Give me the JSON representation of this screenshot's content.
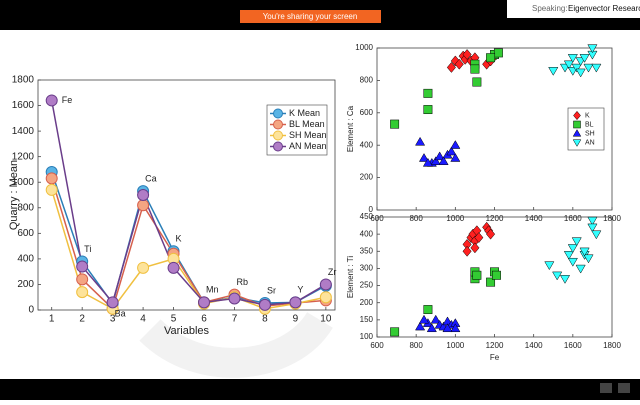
{
  "banner": "You're sharing your screen",
  "speaker": {
    "label": "Speaking:",
    "name": "Eigenvector Research"
  },
  "chart_data": [
    {
      "type": "line",
      "xlabel": "Variables",
      "ylabel": "Quarry : Mean",
      "x": [
        1,
        2,
        3,
        4,
        5,
        6,
        7,
        8,
        9,
        10
      ],
      "annotations": [
        "Fe",
        "Ti",
        "Ba",
        "Ca",
        "K",
        "Mn",
        "Rb",
        "Sr",
        "Y",
        "Zr"
      ],
      "xlim": [
        0.55,
        10.3
      ],
      "xticks": [
        1,
        2,
        3,
        4,
        5,
        6,
        7,
        8,
        9,
        10
      ],
      "ylim": [
        0,
        1800
      ],
      "yticks": [
        0,
        200,
        400,
        600,
        800,
        1000,
        1200,
        1400,
        1600,
        1800
      ],
      "legend": "northeast",
      "series": [
        {
          "name": "K Mean",
          "color": "#5ab4e5",
          "edge": "#2a7fb8",
          "values": [
            1080,
            380,
            50,
            930,
            460,
            60,
            100,
            55,
            60,
            190
          ]
        },
        {
          "name": "BL Mean",
          "color": "#f4a582",
          "edge": "#d6604d",
          "values": [
            1030,
            240,
            10,
            820,
            440,
            60,
            120,
            30,
            55,
            75
          ]
        },
        {
          "name": "SH Mean",
          "color": "#fde39a",
          "edge": "#f0c040",
          "values": [
            940,
            140,
            10,
            330,
            400,
            50,
            100,
            10,
            50,
            100
          ]
        },
        {
          "name": "AN Mean",
          "color": "#b07cc6",
          "edge": "#6a3d8a",
          "values": [
            1640,
            340,
            60,
            900,
            330,
            60,
            90,
            40,
            60,
            200
          ]
        }
      ]
    },
    {
      "type": "scatter",
      "ylabel": "Element : Ca",
      "xlim": [
        600,
        1800
      ],
      "xticks": [
        600,
        800,
        1000,
        1200,
        1400,
        1600,
        1800
      ],
      "ylim": [
        0,
        1000
      ],
      "yticks": [
        0,
        200,
        400,
        600,
        800,
        1000
      ],
      "legend": "east",
      "series": [
        {
          "name": "K",
          "color": "#ff2020",
          "marker": "diamond",
          "x": [
            980,
            1000,
            1020,
            1040,
            1050,
            1060,
            1080,
            1100,
            1160,
            1180,
            1200,
            1210
          ],
          "values": [
            880,
            920,
            900,
            950,
            930,
            960,
            920,
            940,
            900,
            920,
            950,
            960
          ]
        },
        {
          "name": "BL",
          "color": "#33cc33",
          "marker": "square",
          "x": [
            690,
            860,
            860,
            1100,
            1100,
            1110,
            1200,
            1220,
            1180
          ],
          "values": [
            530,
            720,
            620,
            900,
            870,
            790,
            960,
            970,
            940
          ]
        },
        {
          "name": "SH",
          "color": "#1a1aff",
          "marker": "triangle",
          "x": [
            820,
            840,
            880,
            900,
            920,
            960,
            980,
            1000,
            1000,
            940,
            860
          ],
          "values": [
            420,
            320,
            290,
            300,
            330,
            340,
            360,
            400,
            320,
            300,
            290
          ]
        },
        {
          "name": "AN",
          "color": "#33ffff",
          "marker": "triangle-down",
          "x": [
            1500,
            1560,
            1580,
            1600,
            1620,
            1640,
            1660,
            1680,
            1700,
            1700,
            1720,
            1600,
            1640
          ],
          "values": [
            860,
            880,
            900,
            860,
            880,
            920,
            940,
            880,
            960,
            1000,
            880,
            940,
            850
          ]
        }
      ]
    },
    {
      "type": "scatter",
      "xlabel": "Fe",
      "ylabel": "Element : Ti",
      "xlim": [
        600,
        1800
      ],
      "xticks": [
        600,
        800,
        1000,
        1200,
        1400,
        1600,
        1800
      ],
      "ylim": [
        100,
        450
      ],
      "yticks": [
        100,
        150,
        200,
        250,
        300,
        350,
        400,
        450
      ],
      "series": [
        {
          "name": "K",
          "color": "#ff2020",
          "marker": "diamond",
          "x": [
            1060,
            1080,
            1090,
            1100,
            1110,
            1120,
            1100,
            1160,
            1170,
            1180,
            1060
          ],
          "values": [
            370,
            390,
            400,
            380,
            410,
            390,
            360,
            420,
            410,
            400,
            350
          ]
        },
        {
          "name": "BL",
          "color": "#33cc33",
          "marker": "square",
          "x": [
            690,
            860,
            1100,
            1100,
            1110,
            1180,
            1200,
            1210
          ],
          "values": [
            115,
            180,
            270,
            290,
            280,
            260,
            290,
            280
          ]
        },
        {
          "name": "SH",
          "color": "#1a1aff",
          "marker": "triangle",
          "x": [
            820,
            860,
            880,
            900,
            920,
            940,
            960,
            980,
            1000,
            1000,
            840,
            960
          ],
          "values": [
            130,
            140,
            125,
            150,
            135,
            130,
            145,
            135,
            140,
            125,
            150,
            125
          ]
        },
        {
          "name": "AN",
          "color": "#33ffff",
          "marker": "triangle-down",
          "x": [
            1480,
            1520,
            1560,
            1580,
            1600,
            1600,
            1620,
            1640,
            1660,
            1680,
            1700,
            1700,
            1720,
            1660
          ],
          "values": [
            310,
            280,
            270,
            340,
            360,
            320,
            380,
            300,
            340,
            330,
            440,
            420,
            400,
            350
          ]
        }
      ]
    }
  ]
}
